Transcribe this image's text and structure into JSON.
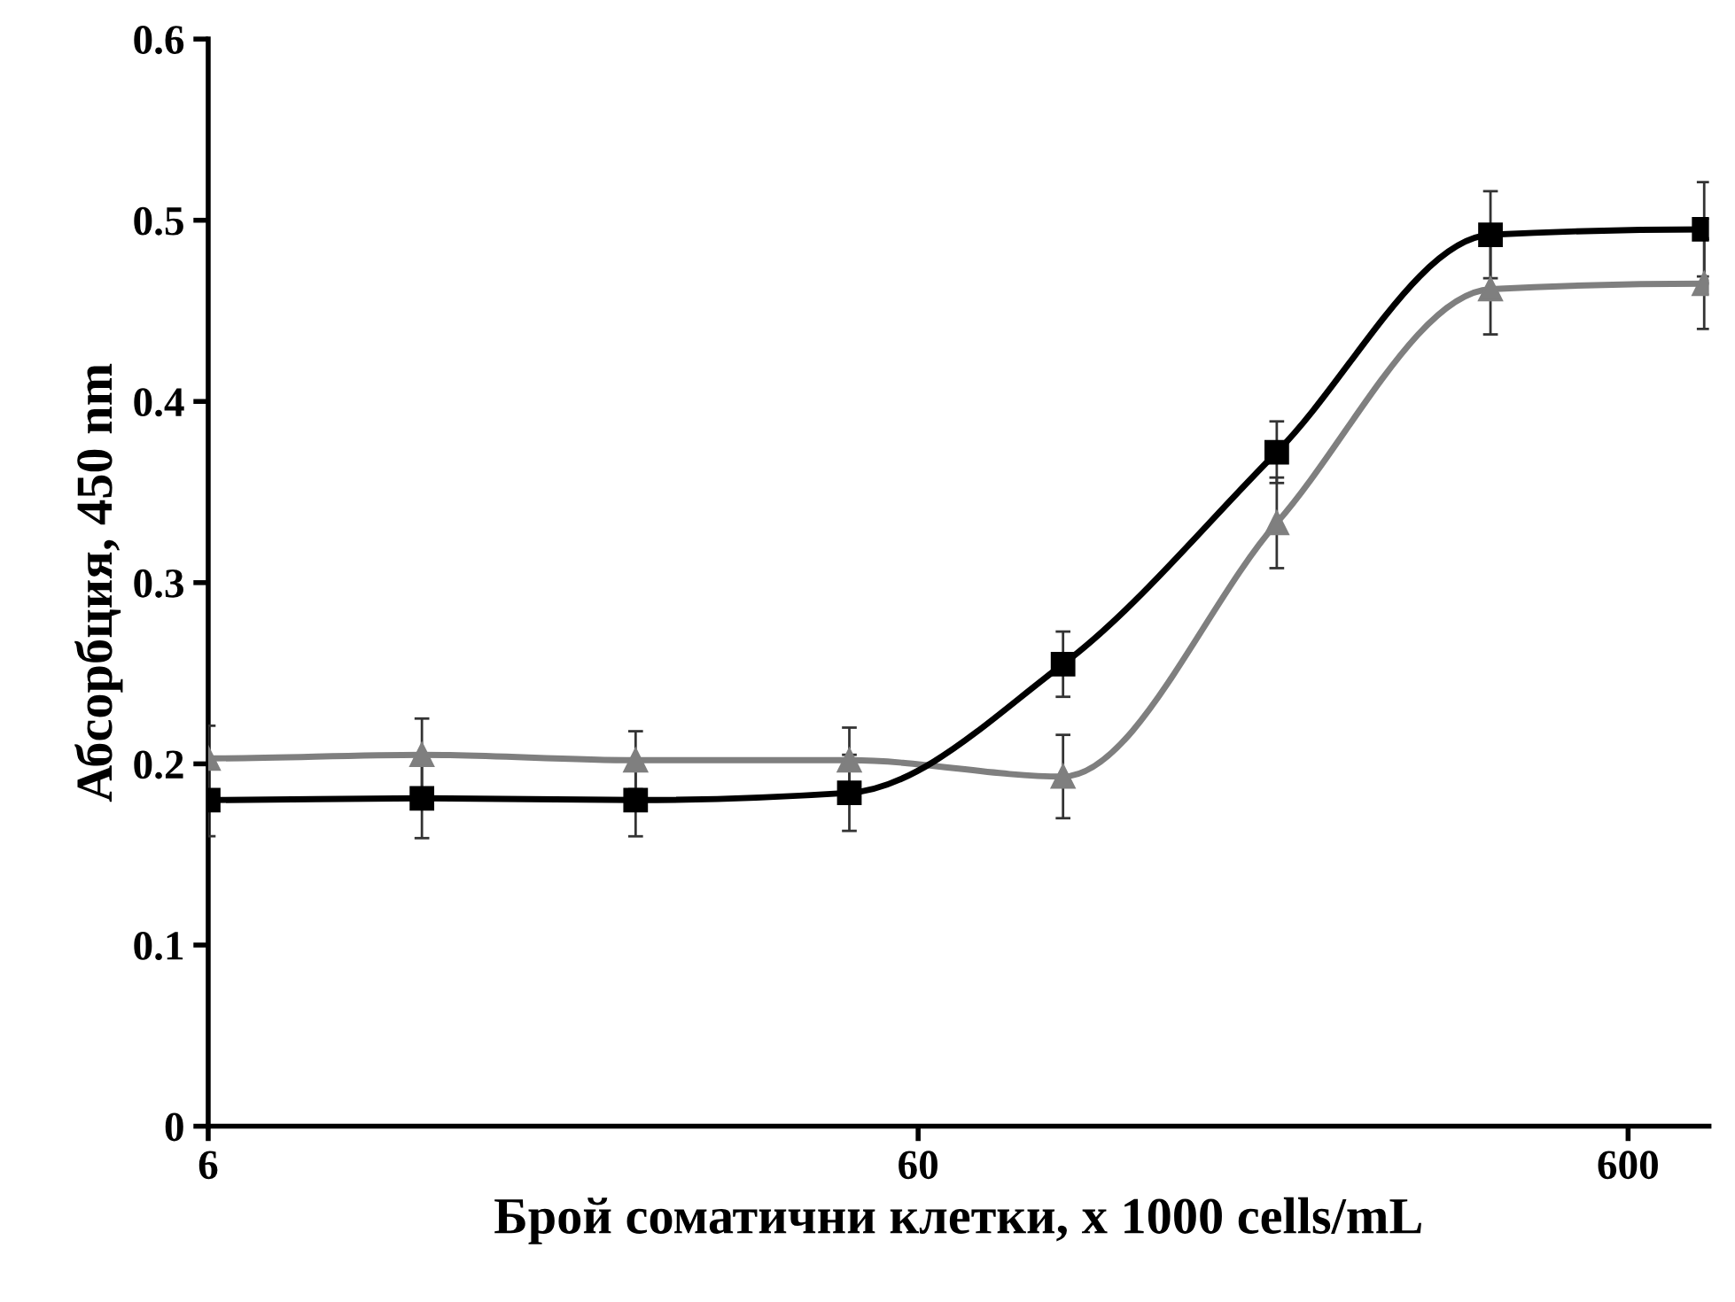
{
  "chart_data": {
    "type": "line",
    "xlabel": "Брой соматични клетки, x 1000 cells/mL",
    "ylabel": "Абсорбция, 450 nm",
    "log": "x",
    "grid": false,
    "line_style": "solid",
    "x": [
      6,
      12,
      24,
      48,
      96,
      192,
      384,
      768
    ],
    "xlim": [
      6,
      780
    ],
    "xticks": [
      6,
      60,
      600
    ],
    "ylim": [
      0,
      0.6
    ],
    "yticks": [
      0,
      0.1,
      0.2,
      0.3,
      0.4,
      0.5,
      0.6
    ],
    "series": [
      {
        "color": "#7f7f7f",
        "marker": "triangle",
        "values": [
          0.203,
          0.205,
          0.202,
          0.202,
          0.193,
          0.333,
          0.462,
          0.465
        ],
        "errors": [
          0.018,
          0.02,
          0.016,
          0.018,
          0.023,
          0.025,
          0.025,
          0.025
        ]
      },
      {
        "color": "#000000",
        "marker": "square",
        "values": [
          0.18,
          0.181,
          0.18,
          0.184,
          0.255,
          0.372,
          0.492,
          0.495
        ],
        "errors": [
          0.02,
          0.022,
          0.02,
          0.021,
          0.018,
          0.017,
          0.024,
          0.026
        ]
      }
    ]
  }
}
